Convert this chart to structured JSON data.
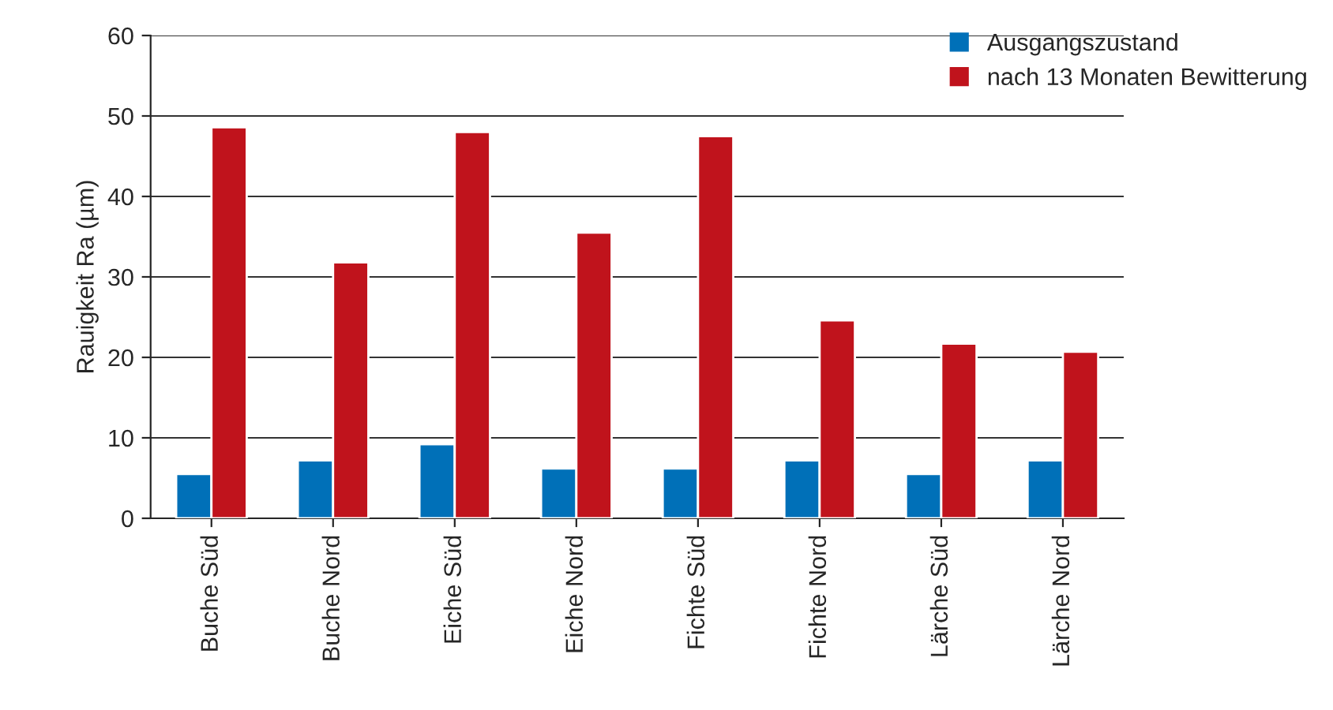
{
  "chart_data": {
    "type": "bar",
    "ylabel": "Rauigkeit Ra (µm)",
    "categories": [
      "Buche Süd",
      "Buche Nord",
      "Eiche Süd",
      "Eiche Nord",
      "Fichte Süd",
      "Fichte Nord",
      "Lärche Süd",
      "Lärche Nord"
    ],
    "series": [
      {
        "name": "Ausgangszustand",
        "color": "#0070b8",
        "values": [
          5.5,
          7.2,
          9.2,
          6.2,
          6.2,
          7.2,
          5.5,
          7.2
        ]
      },
      {
        "name": "nach 13 Monaten Bewitterung",
        "color": "#c0131c",
        "values": [
          48.6,
          31.8,
          48.0,
          35.5,
          47.5,
          24.6,
          21.7,
          20.7
        ]
      }
    ],
    "ylim": [
      0,
      60
    ],
    "yticks": [
      0,
      10,
      20,
      30,
      40,
      50,
      60
    ],
    "grid": "y",
    "legend": "top right"
  }
}
